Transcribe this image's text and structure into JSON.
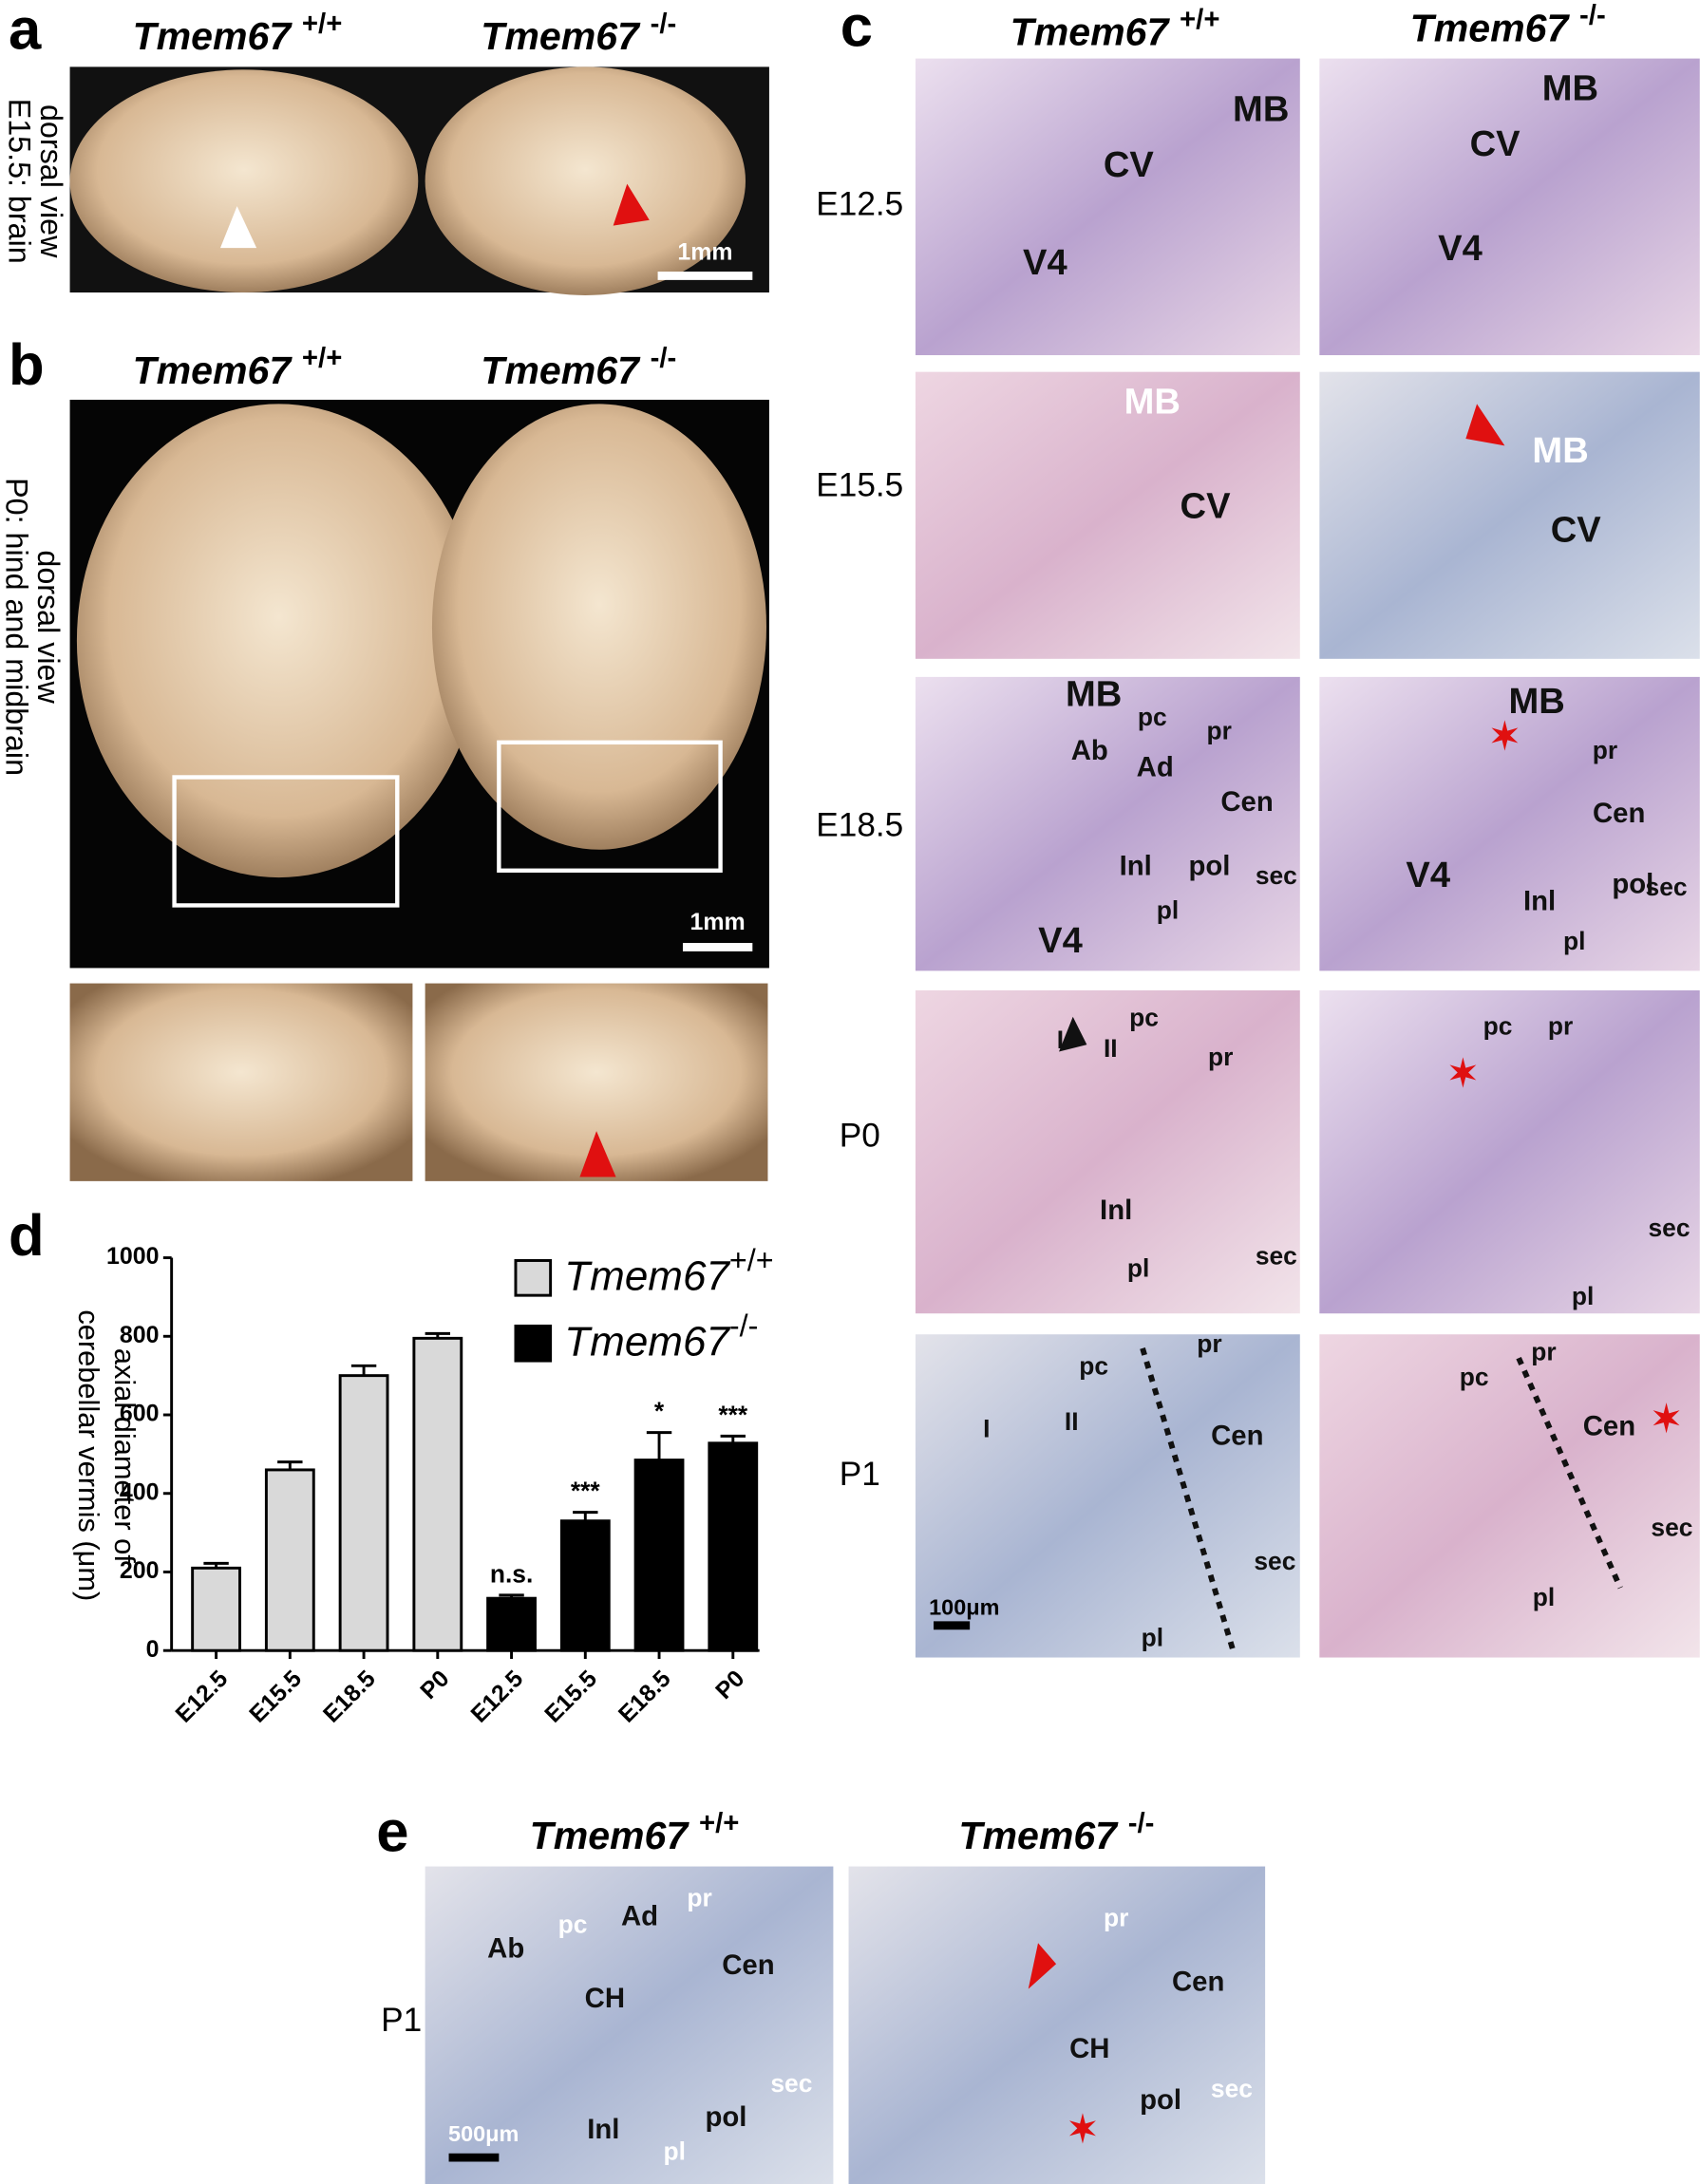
{
  "panel_a": {
    "label": "a",
    "headers": [
      {
        "gene": "Tmem67",
        "genotype": "+/+"
      },
      {
        "gene": "Tmem67",
        "genotype": "-/-"
      }
    ],
    "side_label": [
      "E15.5: brain",
      "dorsal view"
    ],
    "scale_bar": "1mm"
  },
  "panel_b": {
    "label": "b",
    "headers": [
      {
        "gene": "Tmem67",
        "genotype": "+/+"
      },
      {
        "gene": "Tmem67",
        "genotype": "-/-"
      }
    ],
    "side_label": [
      "P0: hind and midbrain",
      "dorsal view"
    ],
    "scale_bar": "1mm"
  },
  "panel_c": {
    "label": "c",
    "headers": [
      {
        "gene": "Tmem67",
        "genotype": "+/+"
      },
      {
        "gene": "Tmem67",
        "genotype": "-/-"
      }
    ],
    "rows": [
      "E12.5",
      "E15.5",
      "E18.5",
      "P0",
      "P1"
    ],
    "image_labels": [
      [
        [
          "CV",
          "MB",
          "V4"
        ],
        [
          "MB",
          "CV",
          "V4"
        ]
      ],
      [
        [
          "MB",
          "CV"
        ],
        [
          "MB",
          "CV"
        ]
      ],
      [
        [
          "MB",
          "pc",
          "pr",
          "Ab",
          "Ad",
          "Cen",
          "Inl",
          "pol",
          "sec",
          "pl",
          "V4"
        ],
        [
          "MB",
          "pr",
          "Cen",
          "V4",
          "Inl",
          "pol",
          "sec",
          "pl"
        ]
      ],
      [
        [
          "pc",
          "I",
          "II",
          "pr",
          "Inl",
          "sec",
          "pl"
        ],
        [
          "pc",
          "pr",
          "sec",
          "pl"
        ]
      ],
      [
        [
          "pr",
          "pc",
          "I",
          "II",
          "Cen",
          "sec",
          "pl"
        ],
        [
          "pr",
          "pc",
          "Cen",
          "sec",
          "pl"
        ]
      ]
    ],
    "scale_bar": "100μm"
  },
  "chart_data": {
    "type": "bar",
    "panel_label": "d",
    "y_label": [
      "axial diameter of",
      "cerebellar vermis (μm)"
    ],
    "categories": [
      "E12.5",
      "E15.5",
      "E18.5",
      "P0",
      "E12.5",
      "E15.5",
      "E18.5",
      "P0"
    ],
    "series": [
      {
        "name": "Tmem67",
        "superscript": "+/+",
        "color": "#d9d9d9",
        "values": [
          210,
          460,
          700,
          795,
          null,
          null,
          null,
          null
        ],
        "errors": [
          12,
          20,
          25,
          12,
          null,
          null,
          null,
          null
        ]
      },
      {
        "name": "Tmem67",
        "superscript": "-/-",
        "color": "#000000",
        "values": [
          null,
          null,
          null,
          null,
          133,
          330,
          485,
          528
        ],
        "errors": [
          null,
          null,
          null,
          null,
          8,
          22,
          70,
          18
        ]
      }
    ],
    "significance": [
      null,
      null,
      null,
      null,
      "n.s.",
      "***",
      "*",
      "***"
    ],
    "ylim": [
      0,
      1000
    ],
    "yticks": [
      0,
      200,
      400,
      600,
      800,
      1000
    ]
  },
  "panel_e": {
    "label": "e",
    "headers": [
      {
        "gene": "Tmem67",
        "genotype": "+/+"
      },
      {
        "gene": "Tmem67",
        "genotype": "-/-"
      }
    ],
    "row": "P1",
    "image_labels": [
      [
        "Ab",
        "pc",
        "Ad",
        "pr",
        "Cen",
        "CH",
        "sec",
        "pol",
        "Inl",
        "pl"
      ],
      [
        "pr",
        "Cen",
        "CH",
        "pol",
        "sec"
      ]
    ],
    "scale_bar": "500μm"
  }
}
